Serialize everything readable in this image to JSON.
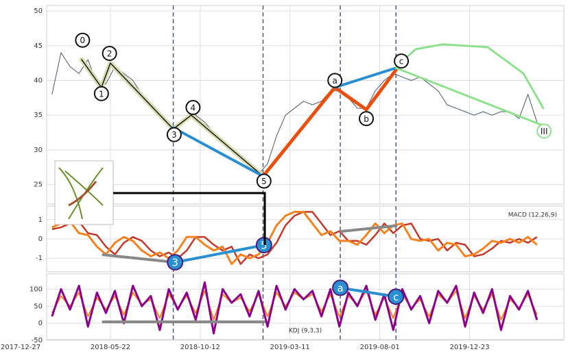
{
  "chart_data": {
    "type": "stock",
    "x": [
      35,
      45,
      55,
      65,
      75,
      85,
      95,
      105,
      115,
      125,
      135,
      145,
      155,
      165,
      175,
      185,
      195,
      205,
      215,
      225,
      235,
      245,
      255,
      265,
      275,
      285,
      295,
      305,
      315,
      325,
      335,
      345,
      355,
      365,
      375,
      385,
      395,
      405,
      415,
      425,
      435,
      445,
      455,
      465,
      475,
      485,
      495,
      505,
      515,
      525,
      535,
      545,
      555,
      565,
      575
    ],
    "xlim": [
      29,
      605
    ],
    "xticks": [
      {
        "value": 0,
        "label": "2017-12-27"
      },
      {
        "value": 100,
        "label": "2018-05-22"
      },
      {
        "value": 200,
        "label": "2018-10-12"
      },
      {
        "value": 300,
        "label": "2019-03-11"
      },
      {
        "value": 400,
        "label": "2019-08-01"
      },
      {
        "value": 500,
        "label": "2019-12-23"
      }
    ],
    "vlines": [
      170,
      270,
      356,
      418
    ],
    "grid": true,
    "panels": [
      {
        "ylim": [
          22.2,
          50.8
        ],
        "yticks": [
          25,
          30,
          35,
          40,
          45,
          50
        ],
        "series": [
          {
            "color": "#4a5468",
            "width": 1,
            "values": [
              38,
              44,
              42,
              41,
              43,
              39.5,
              39.5,
              42,
              41,
              40,
              38,
              36.5,
              35,
              33.5,
              33.5,
              34.5,
              35,
              34,
              32.5,
              31,
              30,
              29,
              28,
              26.5,
              28,
              32,
              35,
              36,
              37,
              36.5,
              37,
              38.5,
              38.5,
              37.5,
              36,
              36,
              38.5,
              40,
              41,
              40.5,
              40,
              40.5,
              39.5,
              38.5,
              36.5,
              36,
              35.5,
              35,
              35.5,
              35,
              35.5,
              35.5,
              34.5,
              38,
              34
            ]
          }
        ],
        "lines": [
          {
            "color": "#d8dcb0",
            "width": 7,
            "x": [
              68,
              90,
              100,
              170,
              190,
              270
            ],
            "y": [
              43,
              39,
              42.5,
              33,
              35,
              26.2
            ]
          },
          {
            "color": "#1a1a1a",
            "width": 1.5,
            "x": [
              68,
              90,
              100,
              170,
              190,
              270
            ],
            "y": [
              43,
              39,
              42.5,
              33,
              35,
              26.2
            ]
          },
          {
            "color": "#2a8fd0",
            "width": 4,
            "x": [
              170,
              270
            ],
            "y": [
              33.2,
              26.2
            ]
          },
          {
            "color": "#e8500f",
            "width": 5,
            "x": [
              270,
              350,
              385,
              418
            ],
            "y": [
              26.2,
              39,
              35.8,
              41.5
            ]
          },
          {
            "color": "#2a8fd0",
            "width": 4,
            "x": [
              350,
              418
            ],
            "y": [
              39,
              41.8
            ]
          },
          {
            "color": "#8ee08e",
            "width": 3,
            "x": [
              418,
              582
            ],
            "y": [
              41.8,
              33.5
            ]
          },
          {
            "color": "#8ee08e",
            "width": 3,
            "x": [
              418,
              440,
              470,
              520,
              560,
              582
            ],
            "y": [
              42,
              44.5,
              45.2,
              44.8,
              41,
              36
            ]
          }
        ],
        "markers": [
          {
            "label": "0",
            "x": 69,
            "y": 45.8,
            "color": "#fff",
            "edge": "#111"
          },
          {
            "label": "1",
            "x": 90,
            "y": 38.1,
            "color": "#fff",
            "edge": "#111"
          },
          {
            "label": "2",
            "x": 99,
            "y": 43.9,
            "color": "#fff",
            "edge": "#111"
          },
          {
            "label": "3",
            "x": 171,
            "y": 32.2,
            "color": "#fff",
            "edge": "#111"
          },
          {
            "label": "4",
            "x": 192,
            "y": 36.1,
            "color": "#fff",
            "edge": "#111"
          },
          {
            "label": "5",
            "x": 271,
            "y": 25.5,
            "color": "#fff",
            "edge": "#111"
          },
          {
            "label": "a",
            "x": 350,
            "y": 40.0,
            "color": "#fff",
            "edge": "#111"
          },
          {
            "label": "b",
            "x": 385,
            "y": 34.5,
            "color": "#fff",
            "edge": "#111"
          },
          {
            "label": "c",
            "x": 424,
            "y": 42.8,
            "color": "#fff",
            "edge": "#111"
          },
          {
            "label": "III",
            "x": 583,
            "y": 32.7,
            "color": "#fff",
            "edge": "#8ee08e"
          }
        ]
      },
      {
        "ylim": [
          -1.7,
          1.7
        ],
        "yticks": [
          -1,
          0,
          1
        ],
        "label": "MACD (12,26,9)",
        "series": [
          {
            "color": "#c0392b",
            "width": 2.5,
            "values": [
              0.5,
              0.6,
              0.8,
              0.9,
              0.3,
              0.2,
              -0.4,
              -0.8,
              -0.2,
              0.1,
              -0.1,
              -0.6,
              -0.9,
              -0.7,
              -1.0,
              -0.6,
              0.1,
              0.1,
              -0.3,
              -0.6,
              -0.4,
              -1.3,
              -0.8,
              -1.0,
              -0.8,
              -0.2,
              0.7,
              1.2,
              1.4,
              1.4,
              0.8,
              0.2,
              0.4,
              -0.1,
              -0.1,
              -0.3,
              0.2,
              0.8,
              0.3,
              0.7,
              0.8,
              0.0,
              -0.1,
              0.0,
              -0.6,
              -0.2,
              -0.3,
              -0.9,
              -0.8,
              -0.5,
              -0.1,
              -0.2,
              0.0,
              -0.2,
              0.1
            ]
          },
          {
            "color": "#f5821f",
            "width": 3,
            "values": [
              0.6,
              0.8,
              0.9,
              0.3,
              0.2,
              -0.4,
              -0.8,
              -0.2,
              0.1,
              -0.1,
              -0.6,
              -0.9,
              -0.7,
              -1.0,
              -0.6,
              0.1,
              0.1,
              -0.3,
              -0.6,
              -0.4,
              -1.3,
              -0.8,
              -1.0,
              -0.8,
              -0.2,
              0.7,
              1.2,
              1.4,
              1.4,
              0.8,
              0.2,
              0.4,
              -0.1,
              -0.1,
              -0.3,
              0.2,
              0.8,
              0.3,
              0.7,
              0.8,
              0.0,
              -0.1,
              0.0,
              -0.6,
              -0.2,
              -0.3,
              -0.9,
              -0.8,
              -0.5,
              -0.1,
              -0.2,
              0.0,
              -0.2,
              0.1,
              -0.3
            ]
          }
        ],
        "lines": [
          {
            "color": "#888",
            "width": 4,
            "x": [
              92,
              172
            ],
            "y": [
              -0.82,
              -1.21
            ]
          },
          {
            "color": "#2a8fd0",
            "width": 4,
            "x": [
              172,
              271
            ],
            "y": [
              -1.21,
              -0.32
            ]
          },
          {
            "color": "#888",
            "width": 4,
            "x": [
              357,
              418
            ],
            "y": [
              0.39,
              0.68
            ]
          }
        ],
        "markers": [
          {
            "label": "3",
            "x": 172,
            "y": -1.21,
            "color": "#2a8fd0",
            "edge": "#4b1a7a"
          },
          {
            "label": "5",
            "x": 271,
            "y": -0.32,
            "color": "#2a8fd0",
            "edge": "#4b1a7a"
          }
        ]
      },
      {
        "ylim": [
          -48,
          145
        ],
        "yticks": [
          -50,
          0,
          50,
          100
        ],
        "label": "KDJ (9,3,3)",
        "series": [
          {
            "color": "#f5821f",
            "width": 2,
            "values": [
              30,
              80,
              50,
              90,
              20,
              75,
              40,
              80,
              25,
              90,
              55,
              70,
              15,
              85,
              45,
              80,
              30,
              95,
              10,
              85,
              60,
              75,
              35,
              85,
              20,
              90,
              50,
              90,
              70,
              85,
              35,
              85,
              20,
              80,
              55,
              95,
              25,
              75,
              15,
              85,
              45,
              70,
              20,
              85,
              60,
              95,
              15,
              80,
              40,
              85,
              10,
              70,
              45,
              85,
              25
            ]
          },
          {
            "color": "#8b008b",
            "width": 3,
            "values": [
              20,
              100,
              40,
              110,
              -10,
              90,
              30,
              95,
              0,
              110,
              50,
              80,
              -20,
              100,
              40,
              90,
              10,
              120,
              -30,
              100,
              60,
              85,
              20,
              95,
              -10,
              110,
              40,
              100,
              70,
              95,
              20,
              100,
              -10,
              90,
              50,
              110,
              10,
              85,
              -20,
              100,
              40,
              80,
              0,
              95,
              60,
              110,
              -10,
              90,
              30,
              100,
              -20,
              80,
              40,
              95,
              10
            ]
          }
        ],
        "lines": [
          {
            "color": "#888",
            "width": 4,
            "x": [
              92,
              271
            ],
            "y": [
              4,
              4
            ]
          },
          {
            "color": "#2a8fd0",
            "width": 4,
            "x": [
              356,
              418
            ],
            "y": [
              104,
              78
            ]
          }
        ],
        "markers": [
          {
            "label": "a",
            "x": 356,
            "y": 104,
            "color": "#2a8fd0",
            "edge": "#4b1a7a"
          },
          {
            "label": "c",
            "x": 418,
            "y": 78,
            "color": "#2a8fd0",
            "edge": "#4b1a7a"
          }
        ]
      }
    ]
  }
}
